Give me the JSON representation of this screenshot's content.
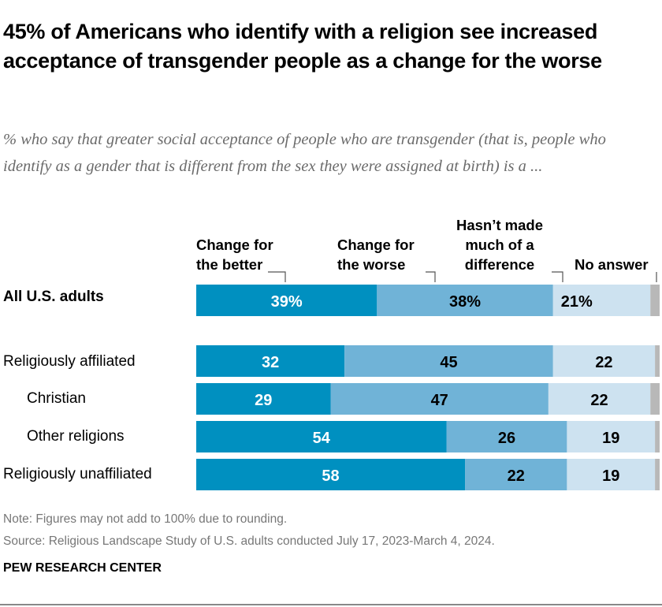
{
  "title": "45% of Americans who identify with a religion see increased acceptance of transgender people as a change for the worse",
  "subtitle": "% who say that greater social acceptance of people who are transgender (that is, people who identify as a gender that is different from the sex they were assigned at birth) is a ...",
  "chart_data": {
    "type": "bar",
    "orientation": "horizontal-stacked",
    "categories": [
      "All U.S. adults",
      "Religiously affiliated",
      "Christian",
      "Other religions",
      "Religiously unaffiliated"
    ],
    "series": [
      {
        "name": "Change for the better",
        "values": [
          39,
          32,
          29,
          54,
          58
        ],
        "color": "#0090c0",
        "labels": [
          "39%",
          "32",
          "29",
          "54",
          "58"
        ]
      },
      {
        "name": "Change for the worse",
        "values": [
          38,
          45,
          47,
          26,
          22
        ],
        "color": "#70b3d7",
        "labels": [
          "38%",
          "45",
          "47",
          "26",
          "22"
        ]
      },
      {
        "name": "Hasn't made much of a difference",
        "values": [
          21,
          22,
          22,
          19,
          19
        ],
        "color": "#cde2f0",
        "labels": [
          "21%",
          "22",
          "22",
          "19",
          "19"
        ]
      },
      {
        "name": "No answer",
        "values": [
          2,
          1,
          2,
          1,
          1
        ],
        "color": "#b8b8b8"
      }
    ],
    "xlim": [
      0,
      100
    ]
  },
  "legend": {
    "better": "Change for the better",
    "worse": "Change for the worse",
    "nodiff": "Hasn’t made much of a difference",
    "na": "No answer"
  },
  "note": "Note: Figures may not add to 100% due to rounding.",
  "source": "Source: Religious Landscape Study of U.S. adults conducted July 17, 2023-March 4, 2024.",
  "brand": "PEW RESEARCH CENTER"
}
